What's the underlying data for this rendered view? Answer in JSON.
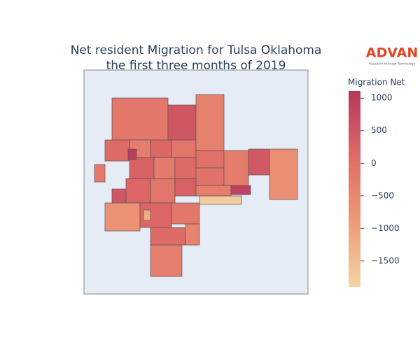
{
  "chart_data": {
    "type": "choropleth",
    "title": [
      "Net resident Migration for Tulsa Oklahoma",
      "the first three months of 2019"
    ],
    "logo": {
      "name": "ADVAN",
      "tagline": "Research through Technology"
    },
    "colorbar": {
      "title": "Migration Net",
      "range": [
        -1900,
        1110
      ],
      "colorscale": [
        "#f5d3a5",
        "#ee9b77",
        "#df6b66",
        "#b5375f"
      ],
      "ticks": [
        {
          "value": 1000,
          "label": "1000"
        },
        {
          "value": 500,
          "label": "500"
        },
        {
          "value": 0,
          "label": "0"
        },
        {
          "value": -500,
          "label": "−500"
        },
        {
          "value": -1000,
          "label": "−1000"
        },
        {
          "value": -1500,
          "label": "−1500"
        }
      ]
    },
    "values": [
      -150,
      100,
      -300,
      200,
      500,
      -100,
      -350,
      0,
      300,
      -200,
      100,
      -50,
      -250,
      450,
      -650,
      200,
      -100,
      300,
      -300,
      900,
      -1750,
      500,
      -700,
      -200,
      200,
      -150,
      100,
      -400,
      -300,
      -1200,
      1000
    ]
  }
}
